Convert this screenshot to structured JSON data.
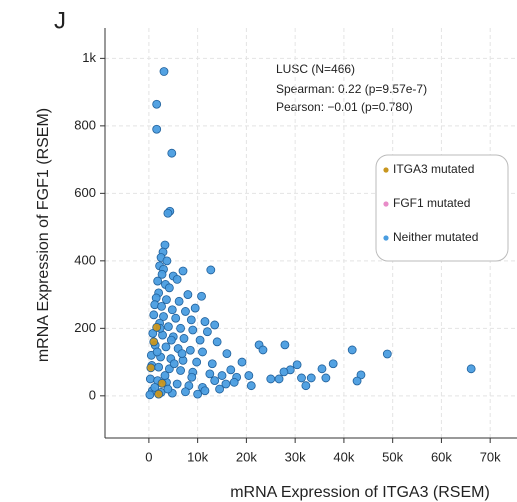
{
  "chart_data": {
    "type": "scatter",
    "panel_label": "J",
    "xlabel": "mRNA Expression of ITGA3 (RSEM)",
    "ylabel": "mRNA Expression of FGF1 (RSEM)",
    "annotations": [
      "LUSC (N=466)",
      "Spearman: 0.22 (p=9.57e-7)",
      "Pearson: −0.01 (p=0.780)"
    ],
    "xlim": [
      -9000,
      75500
    ],
    "ylim": [
      -125,
      1090
    ],
    "xticks": [
      0,
      {
        "value": 10000,
        "label": "10k"
      },
      {
        "value": 20000,
        "label": "20k"
      },
      {
        "value": 30000,
        "label": "30k"
      },
      {
        "value": 40000,
        "label": "40k"
      },
      {
        "value": 50000,
        "label": "50k"
      },
      {
        "value": 60000,
        "label": "60k"
      },
      {
        "value": 70000,
        "label": "70k"
      }
    ],
    "yticks": [
      0,
      200,
      400,
      600,
      800,
      {
        "value": 1000,
        "label": "1k"
      }
    ],
    "grid": true,
    "series": [
      {
        "name": "ITGA3 mutated",
        "color": "#c8961e",
        "points": [
          [
            400,
            83
          ],
          [
            1600,
            203
          ],
          [
            1000,
            160
          ],
          [
            2700,
            37
          ],
          [
            2000,
            5
          ]
        ]
      },
      {
        "name": "FGF1 mutated",
        "color": "#e88cc8",
        "points": []
      },
      {
        "name": "Neither mutated",
        "color": "#4a9de0",
        "points": [
          [
            3100,
            961
          ],
          [
            1600,
            864
          ],
          [
            1600,
            790
          ],
          [
            4700,
            719
          ],
          [
            4300,
            547
          ],
          [
            3900,
            541
          ],
          [
            7000,
            370
          ],
          [
            12700,
            373
          ],
          [
            3300,
            447
          ],
          [
            2900,
            426
          ],
          [
            2500,
            410
          ],
          [
            3700,
            400
          ],
          [
            2200,
            385
          ],
          [
            3000,
            375
          ],
          [
            2700,
            360
          ],
          [
            5000,
            355
          ],
          [
            5800,
            345
          ],
          [
            1800,
            340
          ],
          [
            3400,
            330
          ],
          [
            4200,
            320
          ],
          [
            2000,
            305
          ],
          [
            8000,
            300
          ],
          [
            1500,
            290
          ],
          [
            3600,
            285
          ],
          [
            6200,
            280
          ],
          [
            10800,
            295
          ],
          [
            1200,
            270
          ],
          [
            2600,
            265
          ],
          [
            4800,
            255
          ],
          [
            7500,
            250
          ],
          [
            9500,
            260
          ],
          [
            1000,
            240
          ],
          [
            3000,
            235
          ],
          [
            5500,
            230
          ],
          [
            8700,
            225
          ],
          [
            11500,
            220
          ],
          [
            13500,
            210
          ],
          [
            2200,
            215
          ],
          [
            4000,
            205
          ],
          [
            6500,
            200
          ],
          [
            9000,
            195
          ],
          [
            12000,
            190
          ],
          [
            800,
            185
          ],
          [
            2800,
            180
          ],
          [
            5000,
            175
          ],
          [
            7200,
            170
          ],
          [
            10500,
            165
          ],
          [
            14000,
            160
          ],
          [
            1300,
            150
          ],
          [
            3500,
            145
          ],
          [
            6000,
            140
          ],
          [
            8500,
            135
          ],
          [
            11000,
            130
          ],
          [
            16000,
            125
          ],
          [
            500,
            120
          ],
          [
            2400,
            115
          ],
          [
            4500,
            110
          ],
          [
            7000,
            105
          ],
          [
            9800,
            100
          ],
          [
            13000,
            95
          ],
          [
            600,
            90
          ],
          [
            2000,
            85
          ],
          [
            4200,
            80
          ],
          [
            6500,
            75
          ],
          [
            9000,
            70
          ],
          [
            12500,
            65
          ],
          [
            15000,
            60
          ],
          [
            18000,
            55
          ],
          [
            300,
            50
          ],
          [
            1800,
            45
          ],
          [
            3600,
            40
          ],
          [
            5800,
            35
          ],
          [
            8200,
            30
          ],
          [
            11000,
            25
          ],
          [
            14500,
            20
          ],
          [
            700,
            15
          ],
          [
            2500,
            10
          ],
          [
            4800,
            8
          ],
          [
            7500,
            12
          ],
          [
            10000,
            5
          ],
          [
            200,
            3
          ],
          [
            1200,
            25
          ],
          [
            3300,
            60
          ],
          [
            5200,
            95
          ],
          [
            1700,
            130
          ],
          [
            4600,
            165
          ],
          [
            2300,
            200
          ],
          [
            6800,
            125
          ],
          [
            8800,
            55
          ],
          [
            3900,
            20
          ],
          [
            66100,
            80
          ],
          [
            48900,
            124
          ],
          [
            43500,
            62
          ],
          [
            42700,
            44
          ],
          [
            41700,
            136
          ],
          [
            37800,
            95
          ],
          [
            36300,
            53
          ],
          [
            27900,
            151
          ],
          [
            22600,
            151
          ],
          [
            23400,
            136
          ],
          [
            29000,
            77
          ],
          [
            30400,
            92
          ],
          [
            31300,
            53
          ],
          [
            33300,
            53
          ],
          [
            32200,
            30
          ],
          [
            35500,
            80
          ],
          [
            25000,
            50
          ],
          [
            26700,
            50
          ],
          [
            27700,
            71
          ],
          [
            19100,
            100
          ],
          [
            16800,
            77
          ],
          [
            15800,
            35
          ],
          [
            11500,
            15
          ],
          [
            20500,
            60
          ],
          [
            17500,
            40
          ],
          [
            21000,
            30
          ],
          [
            13500,
            45
          ]
        ]
      }
    ]
  }
}
